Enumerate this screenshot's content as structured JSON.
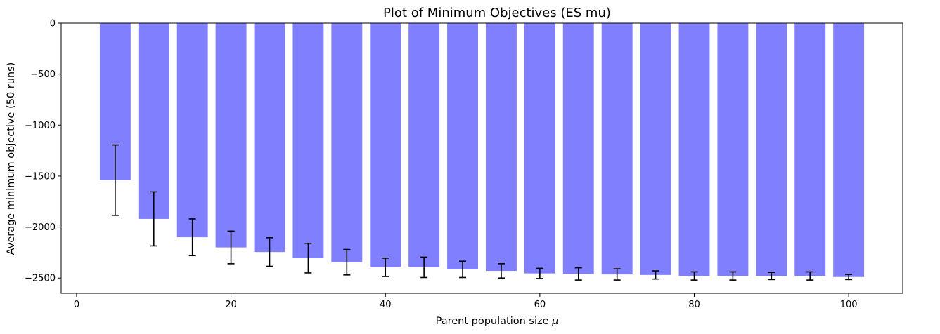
{
  "chart_data": {
    "type": "bar",
    "title": "Plot of Minimum Objectives (ES mu)",
    "xlabel_prefix": "Parent population size ",
    "xlabel_symbol": "μ",
    "ylabel": "Average minimum objective (50 runs)",
    "xlim": [
      -2,
      107
    ],
    "ylim": [
      -2650,
      0
    ],
    "xticks": [
      0,
      20,
      40,
      60,
      80,
      100
    ],
    "yticks": [
      0,
      -500,
      -1000,
      -1500,
      -2000,
      -2500
    ],
    "bar_width": 4,
    "bar_color": "#8080ff",
    "error_color": "#000000",
    "grid": false,
    "x": [
      5,
      10,
      15,
      20,
      25,
      30,
      35,
      40,
      45,
      50,
      55,
      60,
      65,
      70,
      75,
      80,
      85,
      90,
      95,
      100
    ],
    "values": [
      -1540,
      -1920,
      -2100,
      -2200,
      -2245,
      -2305,
      -2345,
      -2395,
      -2395,
      -2415,
      -2430,
      -2455,
      -2460,
      -2465,
      -2470,
      -2480,
      -2480,
      -2480,
      -2480,
      -2490
    ],
    "errors": [
      345,
      265,
      180,
      160,
      140,
      145,
      125,
      90,
      100,
      80,
      70,
      50,
      60,
      55,
      40,
      40,
      40,
      35,
      40,
      25
    ]
  }
}
